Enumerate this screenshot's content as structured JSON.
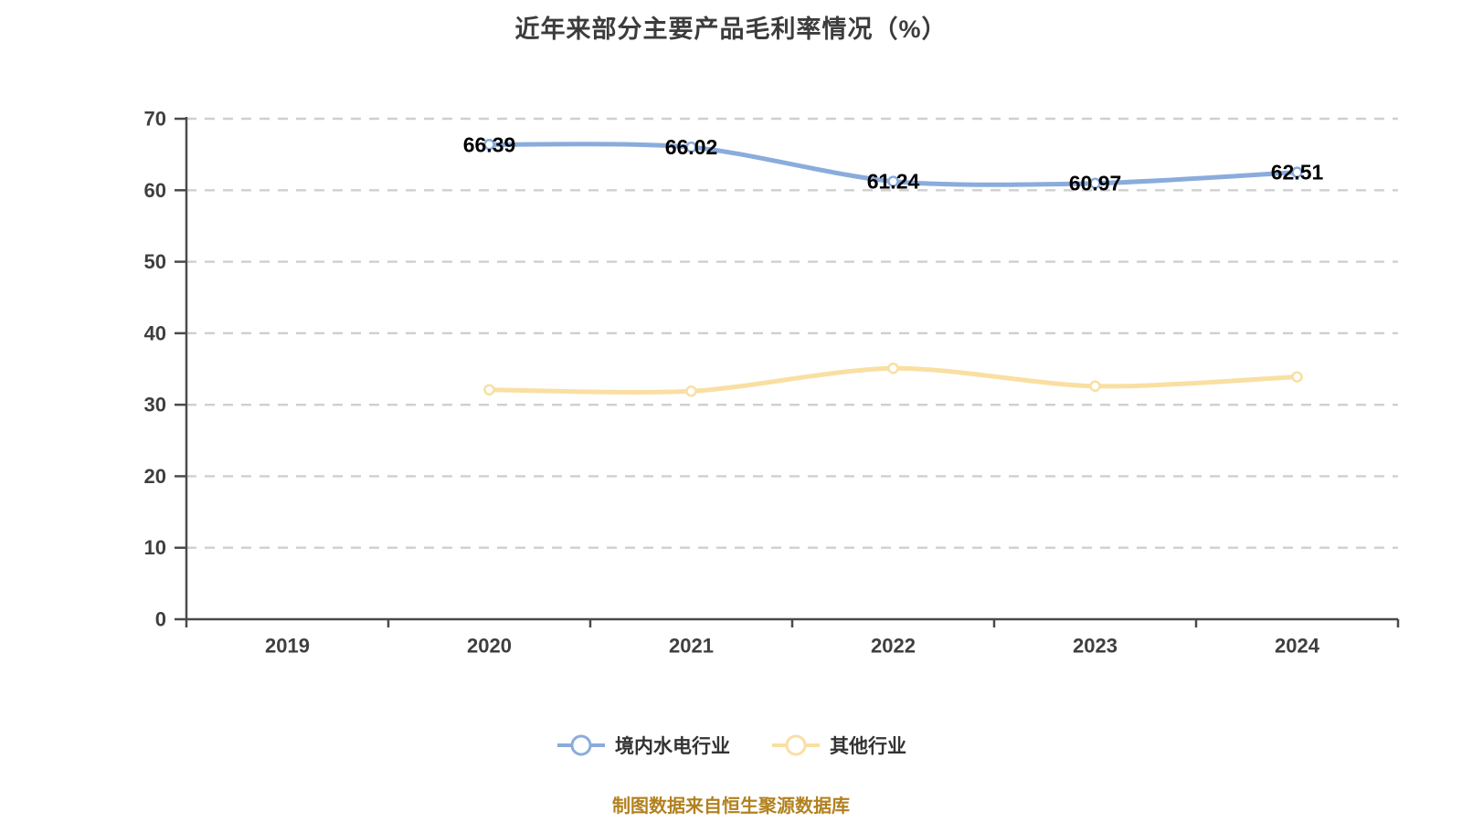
{
  "chart_data": {
    "type": "line",
    "title": "近年来部分主要产品毛利率情况（%）",
    "categories": [
      "2019",
      "2020",
      "2021",
      "2022",
      "2023",
      "2024"
    ],
    "series": [
      {
        "name": "境内水电行业",
        "color": "#8AACDC",
        "values": [
          null,
          66.39,
          66.02,
          61.24,
          60.97,
          62.51
        ],
        "show_point_labels": true
      },
      {
        "name": "其他行业",
        "color": "#F9DFA2",
        "values": [
          null,
          32.1,
          31.9,
          35.1,
          32.6,
          33.9
        ],
        "show_point_labels": false
      }
    ],
    "ylim": [
      0,
      70
    ],
    "yticks": [
      0,
      10,
      20,
      30,
      40,
      50,
      60,
      70
    ],
    "point_label_decimals": 2,
    "grid_style": "horizontal dashed",
    "legend_position": "bottom",
    "colors": {
      "axis_line": "#4a4a4a",
      "axis_text": "#3f3f3f",
      "gridline": "#cfcfcf",
      "point_label": "#000000",
      "point_fill": "#ffffff"
    }
  },
  "footer": {
    "text": "制图数据来自恒生聚源数据库",
    "color": "#B2811F"
  }
}
